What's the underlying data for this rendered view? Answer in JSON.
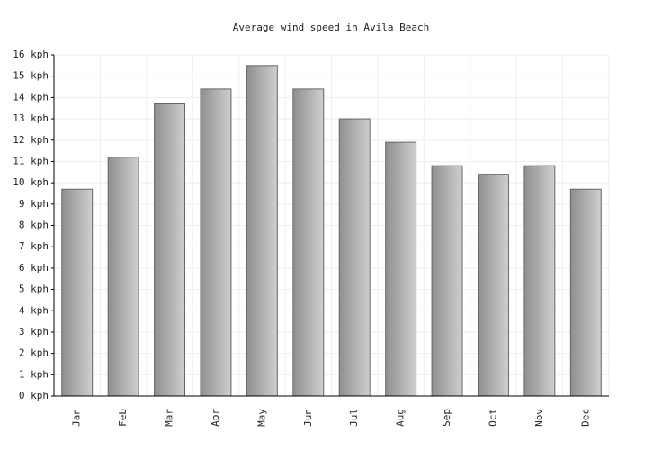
{
  "chart_data": {
    "type": "bar",
    "title": "Average wind speed in Avila Beach",
    "categories": [
      "Jan",
      "Feb",
      "Mar",
      "Apr",
      "May",
      "Jun",
      "Jul",
      "Aug",
      "Sep",
      "Oct",
      "Nov",
      "Dec"
    ],
    "values": [
      9.7,
      11.2,
      13.7,
      14.4,
      15.5,
      14.4,
      13.0,
      11.9,
      10.8,
      10.4,
      10.8,
      9.7
    ],
    "color": "#a9a9a9",
    "ylim": [
      0,
      16
    ],
    "yticks": [
      {
        "value": 0,
        "label": "0 kph"
      },
      {
        "value": 1,
        "label": "1 kph"
      },
      {
        "value": 2,
        "label": "2 kph"
      },
      {
        "value": 3,
        "label": "3 kph"
      },
      {
        "value": 4,
        "label": "4 kph"
      },
      {
        "value": 5,
        "label": "5 kph"
      },
      {
        "value": 6,
        "label": "6 kph"
      },
      {
        "value": 7,
        "label": "7 kph"
      },
      {
        "value": 8,
        "label": "8 kph"
      },
      {
        "value": 9,
        "label": "9 kph"
      },
      {
        "value": 10,
        "label": "10 kph"
      },
      {
        "value": 11,
        "label": "11 kph"
      },
      {
        "value": 12,
        "label": "12 kph"
      },
      {
        "value": 13,
        "label": "13 kph"
      },
      {
        "value": 14,
        "label": "14 kph"
      },
      {
        "value": 15,
        "label": "15 kph"
      },
      {
        "value": 16,
        "label": "16 kph"
      }
    ],
    "grid": true
  }
}
